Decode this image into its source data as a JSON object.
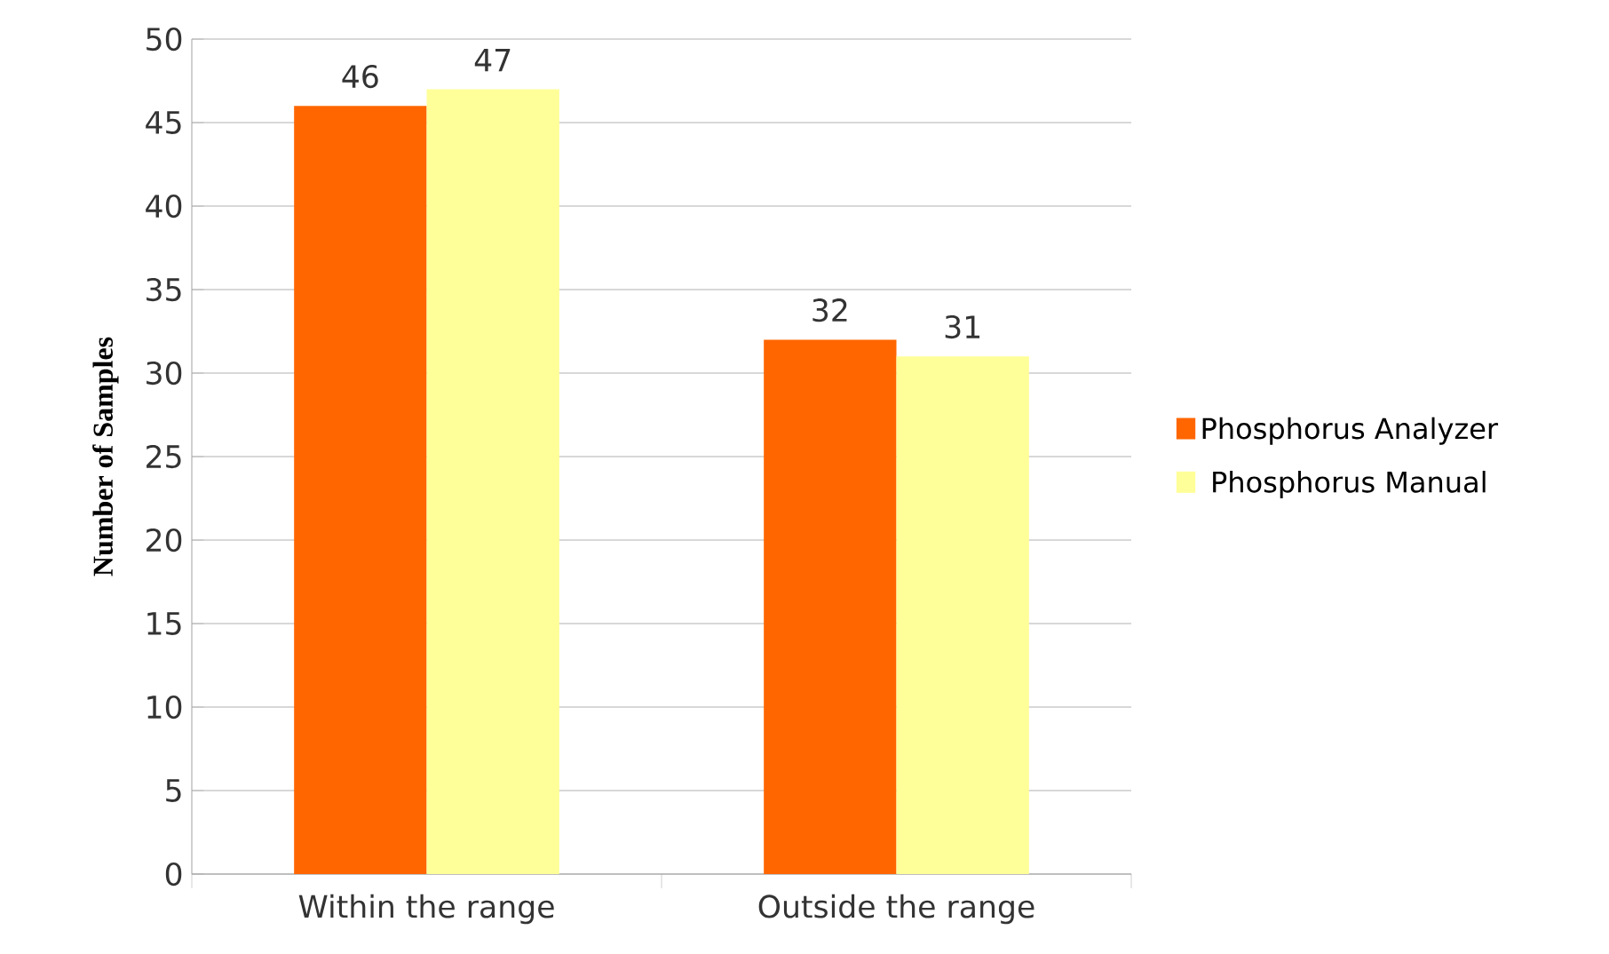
{
  "chart_data": {
    "type": "bar",
    "ylabel": "Number of Samples",
    "categories": [
      "Within the range",
      "Outside the range"
    ],
    "series": [
      {
        "name": "Phosphorus Analyzer",
        "color": "#ff6600",
        "values": [
          46,
          32
        ]
      },
      {
        "name": "Phosphorus Manual",
        "color": "#ffff99",
        "values": [
          47,
          31
        ]
      }
    ],
    "ylim": [
      0,
      50
    ],
    "yticks": [
      0,
      5,
      10,
      15,
      20,
      25,
      30,
      35,
      40,
      45,
      50
    ],
    "grid": "y",
    "legend": "right",
    "data_labels": true
  }
}
